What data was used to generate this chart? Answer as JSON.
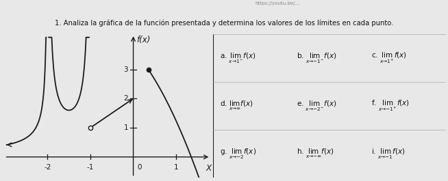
{
  "title": "1. Analiza la gráfica de la función presentada y determina los valores de los límites en cada punto.",
  "fx_label": "f(x)",
  "x_label": "X",
  "bg_color": "#e8e8e8",
  "graph_bg": "#e8e8e8",
  "right_bg": "#f5f5f5",
  "line_color": "#1a1a1a",
  "text_color": "#111111",
  "x_ticks": [
    -2,
    -1,
    1
  ],
  "y_ticks": [
    1,
    2,
    3
  ],
  "xlim": [
    -3.0,
    1.8
  ],
  "ylim": [
    -0.7,
    4.2
  ],
  "row_labels_col0": [
    "a.",
    "d.",
    "g."
  ],
  "row_labels_col1": [
    "b.",
    "e.",
    "h."
  ],
  "row_labels_col2": [
    "c.",
    "f.",
    "i."
  ],
  "lim_subs_col0": [
    "x \\to 1^-",
    "x \\to \\infty",
    "x \\to -2"
  ],
  "lim_subs_col1": [
    "x \\to -1^-",
    "x \\to -2^-",
    "x \\to -\\infty"
  ],
  "lim_subs_col2": [
    "x \\to 1^+",
    "x \\to -1^+",
    "x \\to -1"
  ]
}
